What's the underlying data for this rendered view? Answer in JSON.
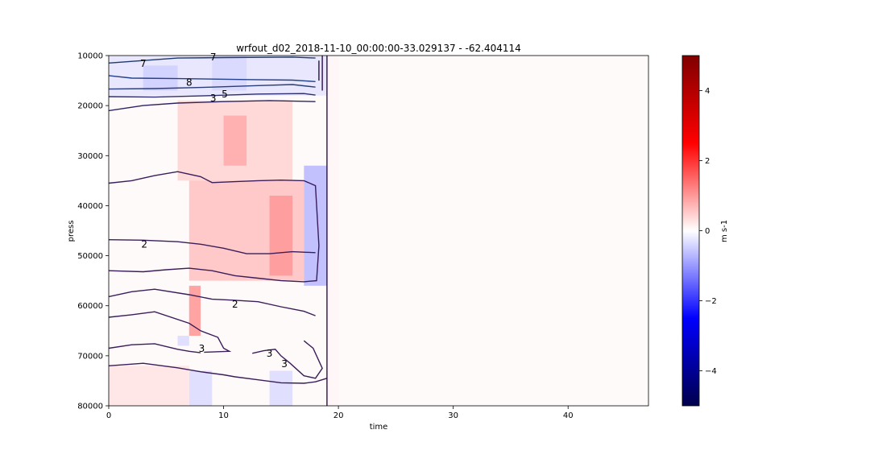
{
  "chart_data": {
    "type": "heatmap",
    "title": "wrfout_d02_2018-11-10_00:00:00-33.029137 - -62.404114",
    "xlabel": "time",
    "ylabel": "press",
    "xlim": [
      0,
      47
    ],
    "ylim": [
      80000,
      10000
    ],
    "y_inverted": true,
    "xticks": [
      0,
      10,
      20,
      30,
      40
    ],
    "yticks": [
      10000,
      20000,
      30000,
      40000,
      50000,
      60000,
      70000,
      80000
    ],
    "colorbar": {
      "label": "m s-1",
      "vmin": -5,
      "vmax": 5,
      "ticks": [
        -4,
        -2,
        0,
        2,
        4
      ],
      "tick_labels": [
        "−4",
        "−2",
        "0",
        "2",
        "4"
      ],
      "colormap": "seismic"
    },
    "heatmap": {
      "x_bins": 19,
      "y_bins": 29,
      "x_start": 0,
      "x_end": 20,
      "description_values": [
        {
          "x": [
            0,
            19
          ],
          "y": [
            10000,
            18000
          ],
          "value": -0.3
        },
        {
          "x": [
            3,
            6
          ],
          "y": [
            12000,
            17000
          ],
          "value": -0.5
        },
        {
          "x": [
            9,
            12
          ],
          "y": [
            10000,
            17000
          ],
          "value": -0.4
        },
        {
          "x": [
            6,
            16
          ],
          "y": [
            19000,
            35000
          ],
          "value": 0.5
        },
        {
          "x": [
            10,
            12
          ],
          "y": [
            22000,
            32000
          ],
          "value": 0.9
        },
        {
          "x": [
            7,
            17
          ],
          "y": [
            35000,
            55000
          ],
          "value": 0.7
        },
        {
          "x": [
            14,
            16
          ],
          "y": [
            38000,
            54000
          ],
          "value": 1.1
        },
        {
          "x": [
            17,
            19
          ],
          "y": [
            32000,
            56000
          ],
          "value": -0.8
        },
        {
          "x": [
            7,
            8
          ],
          "y": [
            56000,
            66000
          ],
          "value": 1.2
        },
        {
          "x": [
            6,
            7
          ],
          "y": [
            66000,
            68000
          ],
          "value": -0.4
        },
        {
          "x": [
            7,
            9
          ],
          "y": [
            73000,
            80000
          ],
          "value": -0.4
        },
        {
          "x": [
            14,
            16
          ],
          "y": [
            73000,
            80000
          ],
          "value": -0.4
        },
        {
          "x": [
            0,
            7
          ],
          "y": [
            72000,
            80000
          ],
          "value": 0.3
        },
        {
          "x": [
            19,
            20
          ],
          "y": [
            10000,
            80000
          ],
          "value": 0.1
        }
      ],
      "background_value": 0.05
    },
    "contour_labels": [
      {
        "text": "7",
        "x": 3.0,
        "y": 11600
      },
      {
        "text": "7",
        "x": 9.1,
        "y": 10300
      },
      {
        "text": "8",
        "x": 7.0,
        "y": 15400
      },
      {
        "text": "5",
        "x": 10.1,
        "y": 17700
      },
      {
        "text": "3",
        "x": 9.1,
        "y": 18500
      },
      {
        "text": "2",
        "x": 3.1,
        "y": 47700
      },
      {
        "text": "2",
        "x": 11.0,
        "y": 59700
      },
      {
        "text": "3",
        "x": 8.1,
        "y": 68600
      },
      {
        "text": "3",
        "x": 14.0,
        "y": 69500
      },
      {
        "text": "3",
        "x": 15.3,
        "y": 71600
      }
    ],
    "grid": false,
    "legend": "none"
  }
}
